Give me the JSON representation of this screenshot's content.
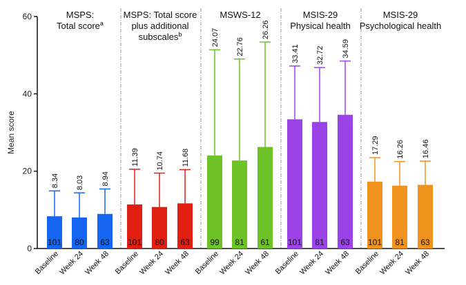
{
  "chart_data": {
    "type": "bar",
    "ylabel": "Mean score",
    "ylim": [
      0,
      60
    ],
    "yticks": [
      0,
      20,
      40,
      60
    ],
    "grid": false,
    "categories": [
      "Baseline",
      "Week 24",
      "Week 48"
    ],
    "panels": [
      {
        "title_lines": [
          "MSPS:",
          "Total score"
        ],
        "title_superscript": "a",
        "color": "#1565f0",
        "values": [
          8.34,
          8.03,
          8.94
        ],
        "error_upper": [
          14.9,
          14.4,
          15.4
        ],
        "n": [
          "101",
          "80",
          "63"
        ],
        "value_labels": [
          "8.34",
          "8.03",
          "8.94"
        ]
      },
      {
        "title_lines": [
          "MSPS: Total score",
          "plus additional",
          "subscales"
        ],
        "title_superscript": "b",
        "color": "#e11e12",
        "values": [
          11.39,
          10.74,
          11.68
        ],
        "error_upper": [
          20.5,
          19.5,
          20.4
        ],
        "n": [
          "101",
          "80",
          "63"
        ],
        "value_labels": [
          "11.39",
          "10.74",
          "11.68"
        ]
      },
      {
        "title_lines": [
          "MSWS-12"
        ],
        "title_superscript": "",
        "color": "#6cc226",
        "values": [
          24.07,
          22.76,
          26.26
        ],
        "error_upper": [
          51.4,
          49.0,
          53.4
        ],
        "n": [
          "99",
          "81",
          "61"
        ],
        "value_labels": [
          "24.07",
          "22.76",
          "26.26"
        ]
      },
      {
        "title_lines": [
          "MSIS-29",
          "Physical health"
        ],
        "title_superscript": "",
        "color": "#9b43e6",
        "values": [
          33.41,
          32.72,
          34.59
        ],
        "error_upper": [
          47.2,
          46.8,
          48.5
        ],
        "n": [
          "101",
          "81",
          "63"
        ],
        "value_labels": [
          "33.41",
          "32.72",
          "34.59"
        ]
      },
      {
        "title_lines": [
          "MSIS-29",
          "Psychological health"
        ],
        "title_superscript": "",
        "color": "#ef921e",
        "values": [
          17.29,
          16.26,
          16.46
        ],
        "error_upper": [
          23.5,
          22.5,
          22.6
        ],
        "n": [
          "101",
          "81",
          "63"
        ],
        "value_labels": [
          "17.29",
          "16.26",
          "16.46"
        ]
      }
    ]
  }
}
